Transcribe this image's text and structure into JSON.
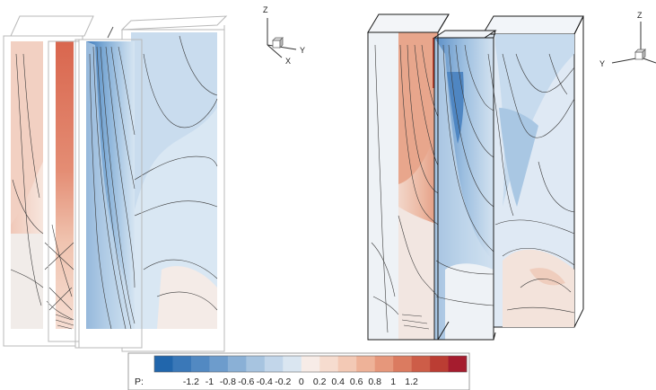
{
  "left_view": {
    "triad": {
      "z_label": "Z",
      "x_label": "X",
      "y_label": "Y"
    }
  },
  "right_view": {
    "triad": {
      "z_label": "Z",
      "y_label": "Y"
    }
  },
  "legend": {
    "variable": "P:",
    "ticks": [
      "-1.2",
      "-1",
      "-0.8",
      "-0.6",
      "-0.4",
      "-0.2",
      "0",
      "0.2",
      "0.4",
      "0.6",
      "0.8",
      "1",
      "1.2"
    ],
    "colors": [
      "#2166ac",
      "#3a78b8",
      "#5289c2",
      "#6d9ccc",
      "#8ab0d6",
      "#a7c4e0",
      "#c2d6ea",
      "#dae6f1",
      "#f7ece7",
      "#f6dccf",
      "#f3c9b5",
      "#eeb298",
      "#e6977b",
      "#db7b60",
      "#cd5d48",
      "#bb3d33",
      "#a51c2e"
    ]
  },
  "colors": {
    "negative_strong": "#3f7bbd",
    "negative_mid": "#8fb6da",
    "negative_light": "#cfe0f0",
    "neutral": "#eef3f8",
    "positive_light": "#f6ddd2",
    "positive_mid": "#eeb49e",
    "positive_strong": "#d8624c",
    "contour_line": "#3a3a3a",
    "frame_line": "#b8b8b8",
    "box_line": "#1a1a1a"
  }
}
